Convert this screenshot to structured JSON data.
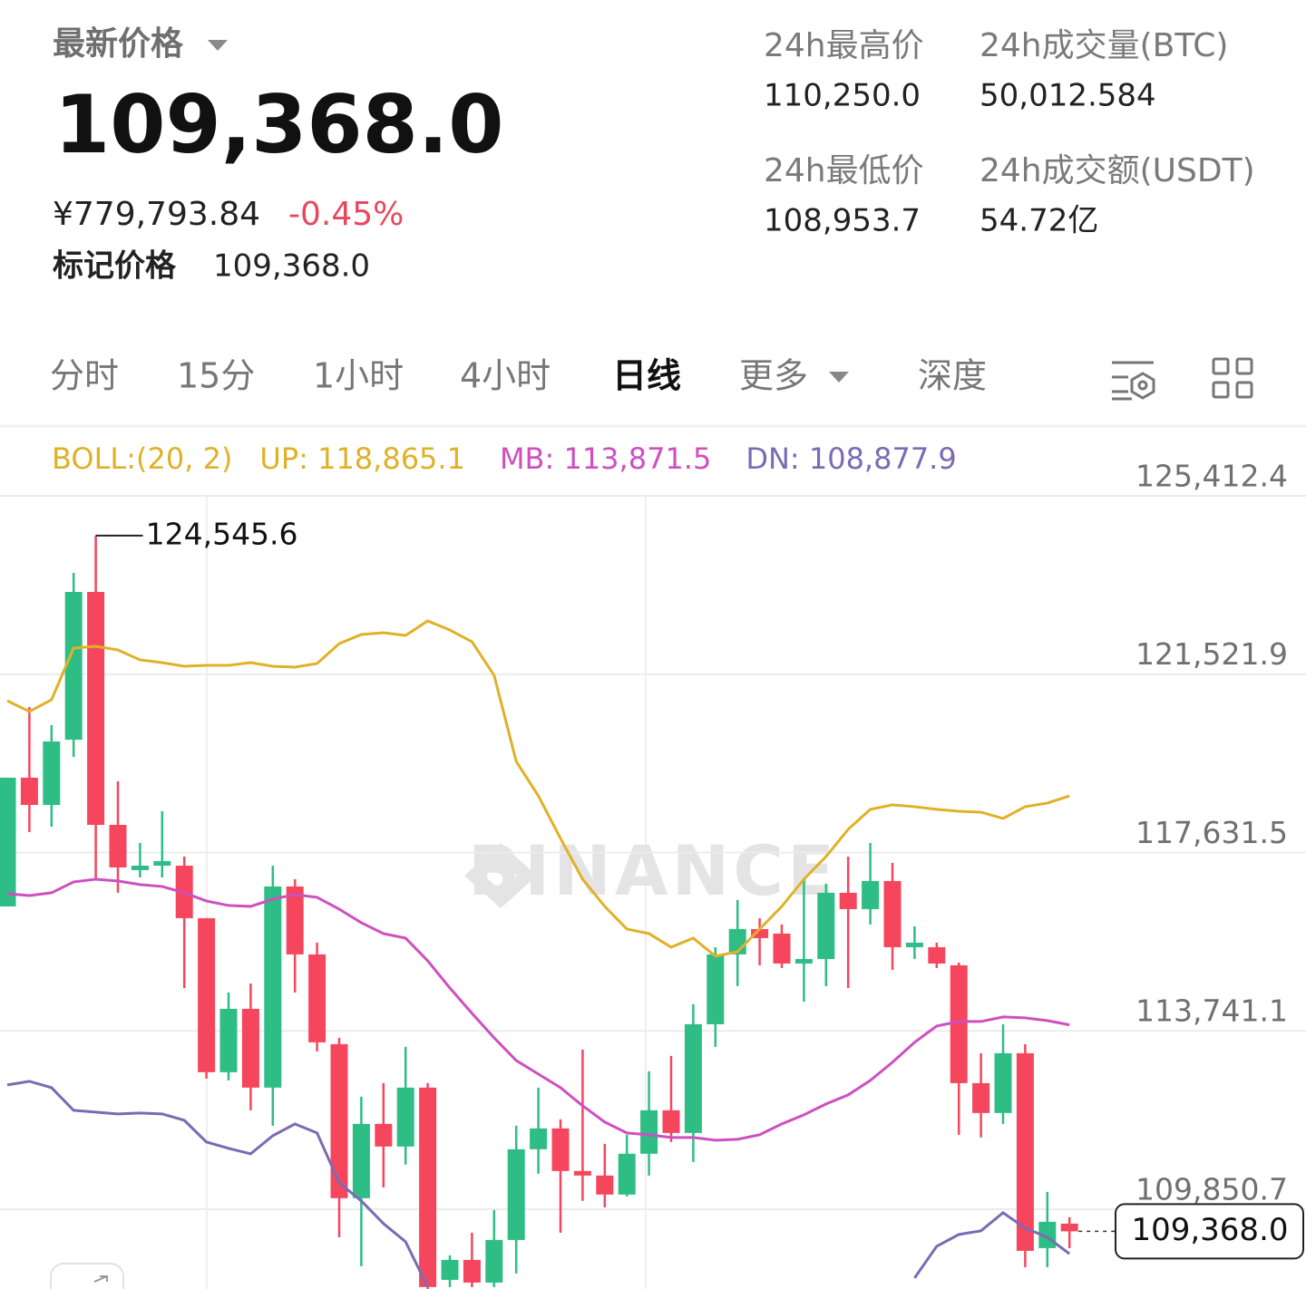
{
  "header": {
    "title": "最新价格",
    "price": "109,368.0",
    "cny": "¥779,793.84",
    "change": "-0.45%",
    "mark_label": "标记价格",
    "mark_price": "109,368.0"
  },
  "stats": [
    {
      "label": "24h最高价",
      "value": "110,250.0"
    },
    {
      "label": "24h成交量(BTC)",
      "value": "50,012.584"
    },
    {
      "label": "24h最低价",
      "value": "108,953.7"
    },
    {
      "label": "24h成交额(USDT)",
      "value": "54.72亿"
    }
  ],
  "tabs": [
    "分时",
    "15分",
    "1小时",
    "4小时",
    "日线",
    "更多",
    "深度"
  ],
  "selected_tab": 4,
  "chart_data": {
    "type": "candlestick",
    "indicator": "BOLL:(20, 2)",
    "watermark": "BINANCE",
    "up_color": "#2ebd85",
    "down_color": "#f6465d",
    "open": [
      116456,
      119264,
      118670,
      120093,
      123316,
      118235,
      117247,
      117345,
      117345,
      116199,
      112839,
      114222,
      112503,
      116891,
      115409,
      113451,
      110091,
      111712,
      111218,
      112503,
      108310,
      108745,
      108250,
      109180,
      111158,
      111613,
      110684,
      110585,
      110170,
      111060,
      112009,
      111514,
      113886,
      115409,
      115962,
      115863,
      115210,
      115309,
      116753,
      116397,
      117010,
      115566,
      115566,
      115171,
      112601,
      111949,
      113253,
      109002,
      109536
    ],
    "high": [
      119264,
      120805,
      120410,
      123731,
      124545.6,
      119185,
      117840,
      118532,
      117543,
      116199,
      114578,
      114775,
      117345,
      117050,
      115665,
      113590,
      112305,
      112601,
      113392,
      112601,
      108844,
      109338,
      109833,
      111672,
      112503,
      111811,
      113332,
      111277,
      111475,
      112859,
      113194,
      114321,
      115566,
      116595,
      116199,
      116061,
      117050,
      116951,
      117543,
      117840,
      117405,
      116021,
      115665,
      115230,
      113253,
      113886,
      113451,
      110229,
      109675
    ],
    "low": [
      116456,
      118077,
      118196,
      119718,
      117050,
      116753,
      117088,
      117088,
      114676,
      112700,
      112661,
      112009,
      111672,
      114578,
      113293,
      109240,
      108607,
      110328,
      110823,
      108110,
      108150,
      108150,
      108150,
      108449,
      110625,
      109339,
      110032,
      109893,
      110130,
      110585,
      111317,
      110882,
      113392,
      114716,
      115171,
      115112,
      114379,
      114716,
      114676,
      116061,
      115072,
      115310,
      115112,
      111475,
      111416,
      111712,
      108587,
      108587,
      109002
    ],
    "close": [
      119264,
      118670,
      120054,
      123316,
      118235,
      117306,
      117345,
      117445,
      116199,
      112839,
      114222,
      112503,
      116891,
      115409,
      113491,
      110091,
      111712,
      111218,
      112503,
      108153,
      108745,
      108250,
      109180,
      111158,
      111613,
      110684,
      110585,
      110170,
      111060,
      112009,
      111514,
      113886,
      115409,
      115962,
      115764,
      115210,
      115309,
      116753,
      116397,
      117010,
      115566,
      115665,
      115210,
      112601,
      111949,
      113253,
      108943,
      109576,
      109368
    ],
    "series": [
      {
        "name": "UP",
        "legend": "UP: 118,865.1",
        "color": "#e0b128",
        "values": [
          120944,
          120707,
          120964,
          122091,
          122130,
          122051,
          121834,
          121774,
          121695,
          121715,
          121715,
          121774,
          121695,
          121675,
          121755,
          122189,
          122387,
          122427,
          122367,
          122684,
          122486,
          122229,
          121498,
          119619,
          118868,
          117939,
          117049,
          116456,
          115962,
          115863,
          115567,
          115764,
          115369,
          115468,
          115962,
          116456,
          117049,
          117544,
          118137,
          118572,
          118671,
          118631,
          118572,
          118532,
          118512,
          118374,
          118631,
          118710,
          118865.1
        ]
      },
      {
        "name": "MB",
        "legend": "MB: 113,871.5",
        "color": "#cf4fbf",
        "values": [
          116733,
          116693,
          116753,
          116990,
          117049,
          117010,
          116931,
          116891,
          116753,
          116575,
          116476,
          116456,
          116614,
          116713,
          116654,
          116397,
          116100,
          115863,
          115764,
          115270,
          114677,
          114123,
          113590,
          113095,
          112799,
          112502,
          112107,
          111751,
          111514,
          111474,
          111415,
          111415,
          111356,
          111375,
          111474,
          111711,
          111909,
          112146,
          112344,
          112660,
          113056,
          113491,
          113847,
          113945,
          113945,
          114044,
          114024,
          113965,
          113871.5
        ]
      },
      {
        "name": "DN",
        "legend": "DN: 108,877.9",
        "color": "#7b6bb3",
        "values": [
          112561,
          112641,
          112502,
          112008,
          111968,
          111929,
          111949,
          111929,
          111790,
          111316,
          111178,
          111059,
          111454,
          111711,
          111514,
          110426,
          110031,
          109537,
          109141,
          108153,
          null,
          null,
          null,
          null,
          null,
          null,
          null,
          null,
          null,
          null,
          null,
          null,
          null,
          null,
          null,
          null,
          null,
          null,
          null,
          null,
          null,
          108350,
          109042,
          109299,
          109379,
          109774,
          109438,
          109240,
          108877.9
        ]
      }
    ],
    "ylim": [
      108110,
      126935
    ],
    "yticks": [
      {
        "value": 125412.4,
        "label": "125,412.4"
      },
      {
        "value": 121521.9,
        "label": "121,521.9"
      },
      {
        "value": 117631.5,
        "label": "117,631.5"
      },
      {
        "value": 113741.1,
        "label": "113,741.1"
      },
      {
        "value": 109850.7,
        "label": "109,850.7"
      }
    ],
    "grid": true,
    "annotation": {
      "value": 124545.6,
      "label": "124,545.6"
    },
    "last_price": {
      "value": 109368,
      "label": "109,368.0"
    }
  }
}
